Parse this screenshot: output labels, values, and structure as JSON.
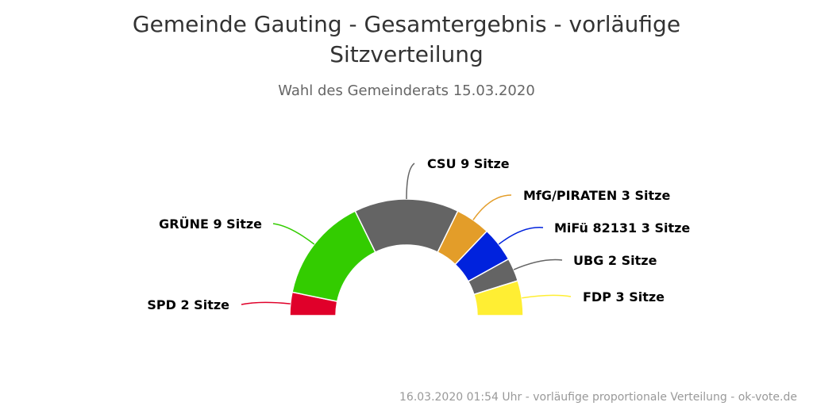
{
  "chart_data": {
    "type": "pie",
    "variant": "semi-circle donut (parliament seat distribution)",
    "title": "Gemeinde Gauting - Gesamtergebnis - vorläufige Sitzverteilung",
    "subtitle": "Wahl des Gemeinderats 15.03.2020",
    "credits": "16.03.2020 01:54 Uhr - vorläufige proportionale Verteilung - ok-vote.de",
    "unit": "Sitze",
    "categories": [
      "SPD",
      "GRÜNE",
      "CSU",
      "MfG/PIRATEN",
      "MiFü 82131",
      "UBG",
      "FDP"
    ],
    "values": [
      2,
      9,
      9,
      3,
      3,
      2,
      3
    ],
    "labels": [
      "SPD 2 Sitze",
      "GRÜNE 9 Sitze",
      "CSU 9 Sitze",
      "MfG/PIRATEN 3 Sitze",
      "MiFü 82131 3 Sitze",
      "UBG 2 Sitze",
      "FDP 3 Sitze"
    ],
    "colors": [
      "#e0002a",
      "#33cc00",
      "#646464",
      "#e39d29",
      "#0022dd",
      "#646464",
      "#ffee33"
    ],
    "legend": "none",
    "data_labels": "outside with connector lines"
  }
}
